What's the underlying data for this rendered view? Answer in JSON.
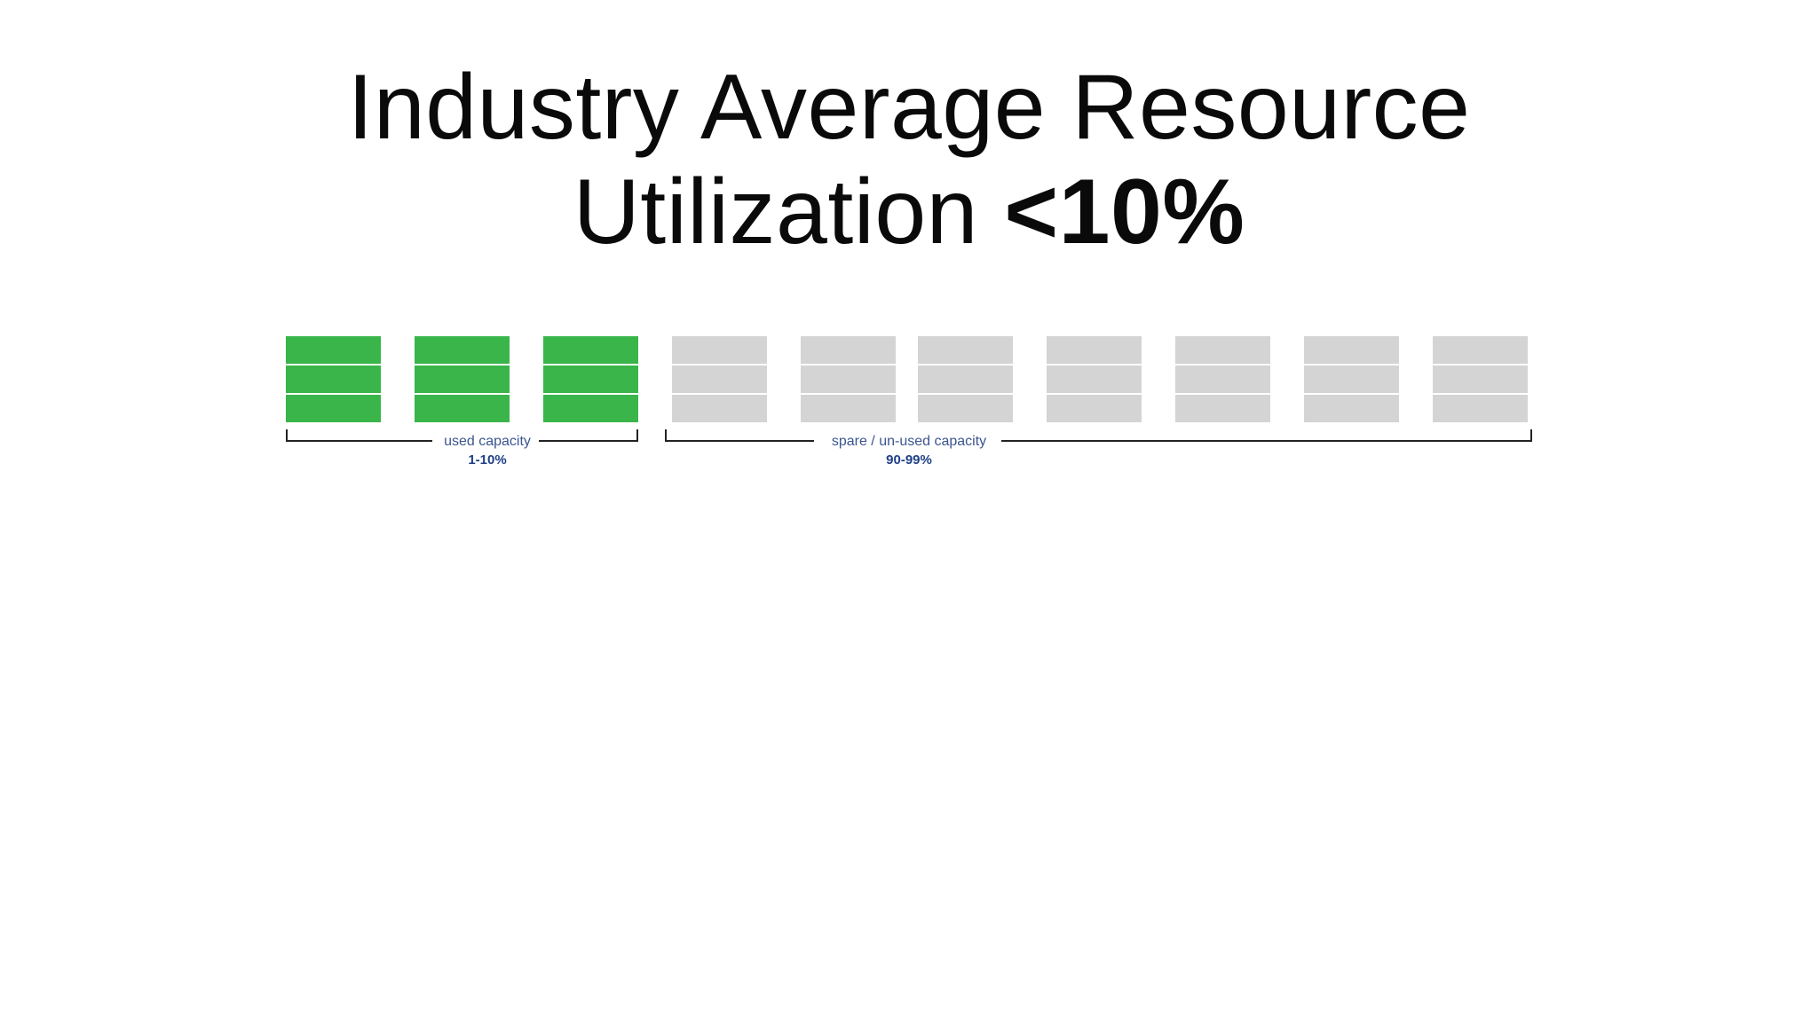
{
  "title": {
    "line1": "Industry Average Resource",
    "line2_prefix": "Utilization ",
    "line2_emphasis": "<10%"
  },
  "colors": {
    "used": "#39b54a",
    "spare": "#d4d4d4",
    "bracket": "#222222",
    "label_text": "#3b5590",
    "range_text": "#1f3f86"
  },
  "servers": [
    {
      "state": "used"
    },
    {
      "state": "used"
    },
    {
      "state": "used"
    },
    {
      "state": "spare"
    },
    {
      "state": "spare"
    },
    {
      "state": "spare"
    },
    {
      "state": "spare"
    },
    {
      "state": "spare"
    },
    {
      "state": "spare"
    },
    {
      "state": "spare"
    }
  ],
  "groups": [
    {
      "label": "used capacity",
      "range": "1-10%"
    },
    {
      "label": "spare / un-used capacity",
      "range": "90-99%"
    }
  ]
}
